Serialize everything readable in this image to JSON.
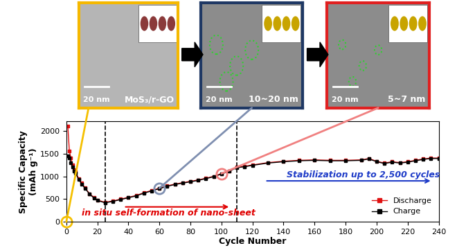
{
  "chart_data": {
    "type": "line",
    "x_label": "Cycle Number",
    "y_label": "Specific Capacity\n(mAh g⁻¹)",
    "x": [
      1,
      2,
      3,
      4,
      5,
      6,
      8,
      10,
      12,
      15,
      18,
      20,
      25,
      30,
      35,
      40,
      45,
      50,
      55,
      60,
      65,
      70,
      75,
      80,
      85,
      90,
      95,
      100,
      105,
      110,
      115,
      120,
      130,
      140,
      150,
      160,
      170,
      180,
      190,
      195,
      200,
      205,
      210,
      215,
      220,
      225,
      230,
      235,
      240
    ],
    "series": [
      {
        "name": "Discharge",
        "color": "#e01010",
        "marker": "square",
        "line_style": "solid",
        "values": [
          2100,
          1550,
          1400,
          1250,
          1150,
          1100,
          950,
          850,
          750,
          620,
          530,
          480,
          430,
          460,
          500,
          540,
          580,
          640,
          690,
          740,
          790,
          830,
          860,
          890,
          920,
          960,
          1000,
          1060,
          1120,
          1200,
          1220,
          1250,
          1300,
          1330,
          1350,
          1360,
          1350,
          1350,
          1360,
          1390,
          1330,
          1290,
          1320,
          1300,
          1320,
          1350,
          1380,
          1400,
          1400
        ]
      },
      {
        "name": "Charge",
        "color": "#000000",
        "marker": "square",
        "line_style": "solid",
        "values": [
          1450,
          1400,
          1300,
          1200,
          1120,
          1070,
          930,
          830,
          740,
          610,
          520,
          470,
          420,
          450,
          490,
          530,
          570,
          630,
          680,
          730,
          780,
          820,
          850,
          880,
          910,
          950,
          990,
          1050,
          1110,
          1190,
          1210,
          1240,
          1290,
          1320,
          1340,
          1350,
          1340,
          1340,
          1350,
          1380,
          1320,
          1280,
          1310,
          1290,
          1310,
          1340,
          1370,
          1390,
          1390
        ]
      }
    ],
    "xlim": [
      0,
      240
    ],
    "xticks": [
      0,
      20,
      40,
      60,
      80,
      100,
      120,
      140,
      160,
      180,
      200,
      220,
      240
    ],
    "ylim": [
      0,
      2200
    ],
    "yticks": [
      0,
      500,
      1000,
      1500,
      2000
    ],
    "grid": false,
    "legend": "lower right",
    "vlines": [
      25,
      110
    ],
    "annotations": [
      {
        "text": "in situ self-formation of nano-sheet",
        "color": "#e00000"
      },
      {
        "text": "Stabilization up to 2,500 cycles",
        "color": "#1f3cc8"
      }
    ],
    "highlights": [
      {
        "x": 0,
        "y": 0,
        "color": "#f5c000"
      },
      {
        "x": 60,
        "y": 740,
        "color": "#7f8fb0"
      },
      {
        "x": 100,
        "y": 1060,
        "color": "#f08080"
      }
    ]
  },
  "panels": [
    {
      "label": "MoS₃/r-GO",
      "scale": "20 nm",
      "color": "#f5b800"
    },
    {
      "label": "10~20 nm",
      "scale": "20 nm",
      "color": "#1f3864"
    },
    {
      "label": "5~7 nm",
      "scale": "20 nm",
      "color": "#e02020"
    }
  ]
}
